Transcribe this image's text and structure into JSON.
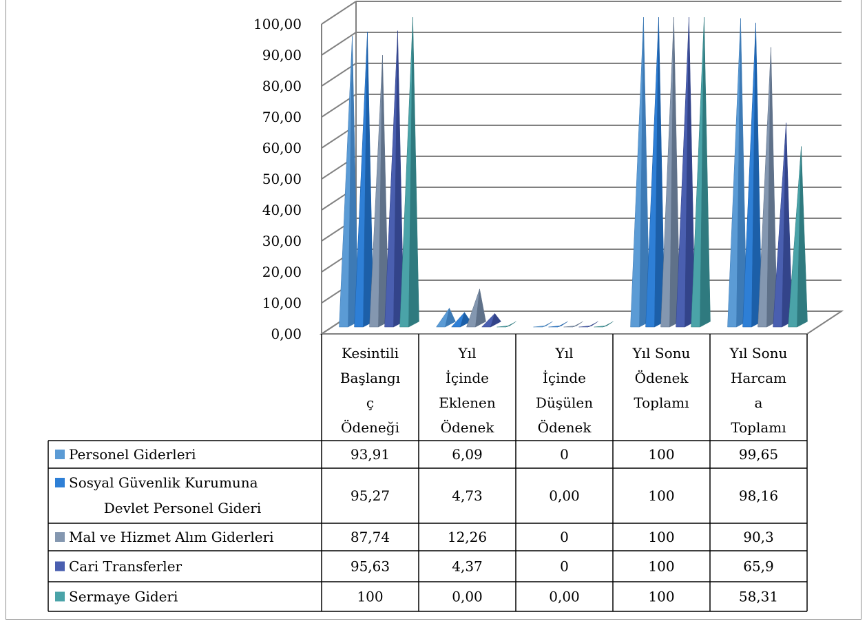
{
  "chart_data": {
    "type": "bar",
    "subtype": "3d-pyramid",
    "categories": [
      [
        "Kesintili",
        "Başlangı",
        "ç",
        "Ödeneği"
      ],
      [
        "Yıl",
        "İçinde",
        "Eklenen",
        "Ödenek"
      ],
      [
        "Yıl",
        "İçinde",
        "Düşülen",
        "Ödenek"
      ],
      [
        "Yıl Sonu",
        "Ödenek",
        "Toplamı"
      ],
      [
        "Yıl Sonu",
        "Harcam",
        "a",
        "Toplamı"
      ]
    ],
    "series": [
      {
        "name": [
          "Personel Giderleri"
        ],
        "color": "#5b9bd5",
        "dark": "#3d7ab5",
        "values": [
          93.91,
          6.09,
          0,
          100,
          99.65
        ],
        "labels": [
          "93,91",
          "6,09",
          "0",
          "100",
          "99,65"
        ]
      },
      {
        "name": [
          "Sosyal Güvenlik Kurumuna",
          "Devlet Personel Gideri"
        ],
        "color": "#2e7fd6",
        "dark": "#1c5fa8",
        "values": [
          95.27,
          4.73,
          0.0,
          100,
          98.16
        ],
        "labels": [
          "95,27",
          "4,73",
          "0,00",
          "100",
          "98,16"
        ]
      },
      {
        "name": [
          "Mal ve Hizmet Alım Giderleri"
        ],
        "color": "#8497b0",
        "dark": "#5f7189",
        "values": [
          87.74,
          12.26,
          0,
          100,
          90.3
        ],
        "labels": [
          "87,74",
          "12,26",
          "0",
          "100",
          "90,3"
        ]
      },
      {
        "name": [
          "Cari Transferler"
        ],
        "color": "#4a5fb0",
        "dark": "#33448a",
        "values": [
          95.63,
          4.37,
          0,
          100,
          65.9
        ],
        "labels": [
          "95,63",
          "4,37",
          "0",
          "100",
          "65,9"
        ]
      },
      {
        "name": [
          "Sermaye Gideri"
        ],
        "color": "#4aa3a8",
        "dark": "#2f7a7f",
        "values": [
          100,
          0.0,
          0.0,
          100,
          58.31
        ],
        "labels": [
          "100",
          "0,00",
          "0,00",
          "100",
          "58,31"
        ]
      }
    ],
    "yticks": [
      "0,00",
      "10,00",
      "20,00",
      "30,00",
      "40,00",
      "50,00",
      "60,00",
      "70,00",
      "80,00",
      "90,00",
      "100,00"
    ],
    "ylim": [
      0,
      100
    ],
    "grid": true,
    "legend": "table-left"
  }
}
